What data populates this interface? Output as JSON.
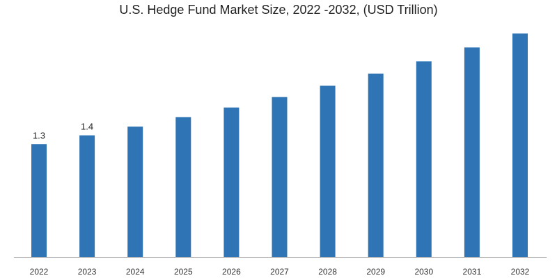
{
  "chart_data": {
    "type": "bar",
    "title": "U.S. Hedge Fund Market Size, 2022 -2032, (USD Trillion)",
    "categories": [
      "2022",
      "2023",
      "2024",
      "2025",
      "2026",
      "2027",
      "2028",
      "2029",
      "2030",
      "2031",
      "2032"
    ],
    "values": [
      1.3,
      1.4,
      1.5,
      1.61,
      1.72,
      1.84,
      1.97,
      2.11,
      2.25,
      2.41,
      2.57
    ],
    "data_labels": [
      "1.3",
      "1.4",
      "",
      "",
      "",
      "",
      "",
      "",
      "",
      "",
      ""
    ],
    "ylim": [
      0,
      2.7
    ],
    "grid": false,
    "legend": "none",
    "bar_color": "#2f75b5",
    "axis_color": "#bfbfbf"
  }
}
